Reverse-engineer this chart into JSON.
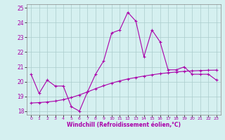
{
  "xlabel": "Windchill (Refroidissement éolien,°C)",
  "xlim": [
    -0.5,
    23.5
  ],
  "ylim": [
    17.75,
    25.25
  ],
  "yticks": [
    18,
    19,
    20,
    21,
    22,
    23,
    24,
    25
  ],
  "xticks": [
    0,
    1,
    2,
    3,
    4,
    5,
    6,
    7,
    8,
    9,
    10,
    11,
    12,
    13,
    14,
    15,
    16,
    17,
    18,
    19,
    20,
    21,
    22,
    23
  ],
  "bg_color": "#d5f0f0",
  "grid_color": "#aacccc",
  "line_color": "#aa00aa",
  "line1_x": [
    0,
    1,
    2,
    3,
    4,
    5,
    6,
    7,
    8,
    9,
    10,
    11,
    12,
    13,
    14,
    15,
    16,
    17,
    18,
    19,
    20,
    21,
    22,
    23
  ],
  "line1_y": [
    20.5,
    19.2,
    20.1,
    19.7,
    19.7,
    18.3,
    18.0,
    19.3,
    20.5,
    21.4,
    23.3,
    23.5,
    24.7,
    24.1,
    21.7,
    23.5,
    22.7,
    20.8,
    20.8,
    21.0,
    20.5,
    20.5,
    20.5,
    20.1
  ],
  "line2_x": [
    0,
    1,
    2,
    3,
    4,
    5,
    6,
    7,
    8,
    9,
    10,
    11,
    12,
    13,
    14,
    15,
    16,
    17,
    18,
    19,
    20,
    21,
    22,
    23
  ],
  "line2_y": [
    18.55,
    18.58,
    18.62,
    18.68,
    18.78,
    18.92,
    19.1,
    19.3,
    19.52,
    19.72,
    19.9,
    20.05,
    20.18,
    20.28,
    20.38,
    20.46,
    20.54,
    20.6,
    20.65,
    20.7,
    20.73,
    20.75,
    20.77,
    20.78
  ]
}
